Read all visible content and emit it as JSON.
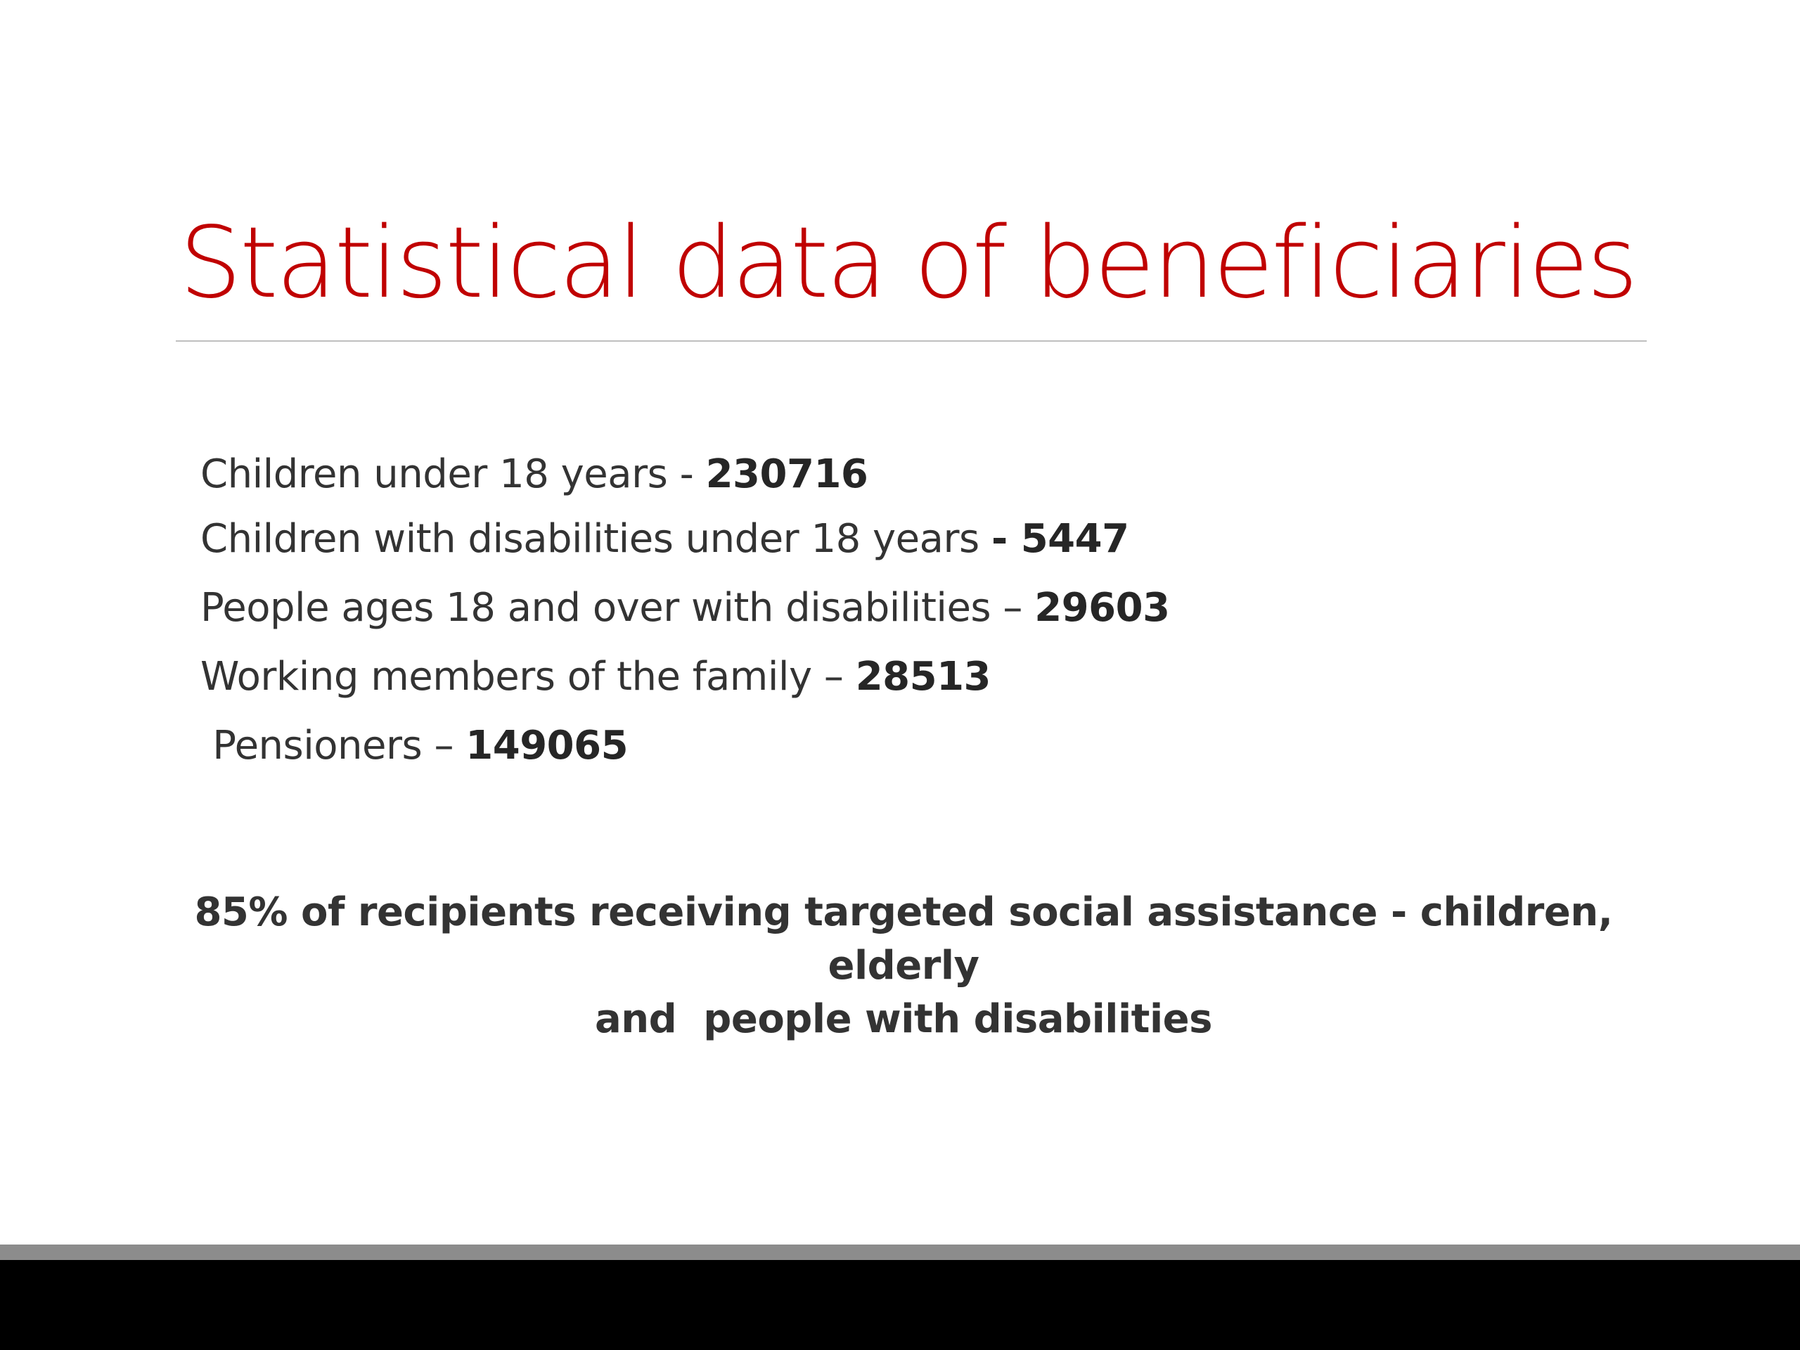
{
  "slide": {
    "title": "Statistical data of beneficiaries",
    "stats": [
      {
        "label": "Children under 18 years  - ",
        "value": "230716"
      },
      {
        "label": "Children with disabilities under 18 years ",
        "value": "- 5447"
      },
      {
        "label": "People ages 18 and over with disabilities – ",
        "value": "29603"
      },
      {
        "label": "Working members of the family – ",
        "value": "28513"
      },
      {
        "label": " Pensioners – ",
        "value": "149065"
      }
    ],
    "summary": {
      "line1": "85% of recipients receiving targeted social assistance - children, elderly",
      "line2": "and  people with disabilities"
    }
  },
  "colors": {
    "title": "#c00000",
    "body_text": "#333333",
    "rule": "#bfbfbf",
    "bottom_strip": "#8c8c8c",
    "bottom_bar": "#000000"
  }
}
